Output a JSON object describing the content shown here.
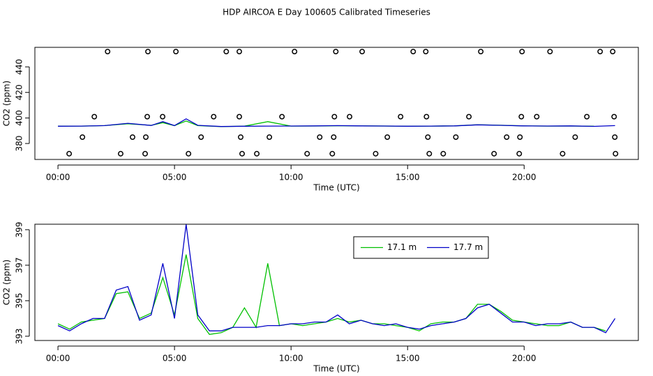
{
  "chart_data": [
    {
      "type": "line",
      "title": "HDP AIRCOA E  Day 100605  Calibrated Timeseries",
      "x_label": "Time (UTC)",
      "y_label": "CO2 (ppm)",
      "xlim": [
        -0.99,
        24.9
      ],
      "ylim": [
        367.5,
        455.3
      ],
      "xticks": [
        {
          "value": 0,
          "label": "00:00"
        },
        {
          "value": 5,
          "label": "05:00"
        },
        {
          "value": 10,
          "label": "10:00"
        },
        {
          "value": 15,
          "label": "15:00"
        },
        {
          "value": 20,
          "label": "20:00"
        }
      ],
      "yticks": [
        380,
        400,
        420,
        440
      ],
      "x": [
        0,
        1,
        2,
        3,
        4,
        4.5,
        5,
        5.5,
        6,
        7,
        8,
        9,
        10,
        11,
        12,
        13,
        14,
        15,
        16,
        17,
        18,
        19,
        20,
        21,
        22,
        23,
        23.9
      ],
      "series": [
        {
          "color": "#00c000",
          "values": [
            393.6,
            393.6,
            394.0,
            395.5,
            394.2,
            396.3,
            394.0,
            397.6,
            394.0,
            393.2,
            393.6,
            397.1,
            393.6,
            393.7,
            393.9,
            393.8,
            393.7,
            393.5,
            393.6,
            393.8,
            394.7,
            394.3,
            393.8,
            393.6,
            393.7,
            393.5,
            null
          ]
        },
        {
          "color": "#0000c8",
          "values": [
            393.5,
            393.6,
            394.0,
            395.8,
            394.1,
            397.1,
            394.0,
            399.3,
            394.2,
            393.3,
            393.5,
            393.6,
            393.7,
            393.8,
            394.0,
            393.8,
            393.7,
            393.5,
            393.6,
            393.8,
            394.6,
            394.2,
            393.8,
            393.7,
            393.8,
            393.4,
            394.0
          ]
        }
      ],
      "points": {
        "color": "#000000",
        "x": [
          2.13,
          3.86,
          5.06,
          7.22,
          7.78,
          10.15,
          11.92,
          13.05,
          15.24,
          15.78,
          18.14,
          19.91,
          21.11,
          23.26,
          23.8,
          1.56,
          3.83,
          4.49,
          6.68,
          7.78,
          9.61,
          11.86,
          12.51,
          14.7,
          15.81,
          17.63,
          19.88,
          20.54,
          22.69,
          23.86,
          1.05,
          3.2,
          3.77,
          6.14,
          7.84,
          9.07,
          11.23,
          11.83,
          14.13,
          15.87,
          17.07,
          19.25,
          19.82,
          22.19,
          23.89,
          0.48,
          2.69,
          3.74,
          5.6,
          7.9,
          8.53,
          10.69,
          11.77,
          13.63,
          15.93,
          16.53,
          18.71,
          19.79,
          21.65,
          23.92
        ],
        "y": [
          452,
          452,
          452,
          452,
          452,
          452,
          452,
          452,
          452,
          452,
          452,
          452,
          452,
          452,
          452,
          401,
          401,
          401,
          401,
          401,
          401,
          401,
          401,
          401,
          401,
          401,
          401,
          401,
          401,
          401,
          385,
          385,
          385,
          385,
          385,
          385,
          385,
          385,
          385,
          385,
          385,
          385,
          385,
          385,
          385,
          372,
          372,
          372,
          372,
          372,
          372,
          372,
          372,
          372,
          372,
          372,
          372,
          372,
          372,
          372
        ]
      }
    },
    {
      "type": "line",
      "x_label": "Time (UTC)",
      "y_label": "CO2 (ppm)",
      "xlim": [
        -0.99,
        24.9
      ],
      "ylim": [
        392.76,
        399.31
      ],
      "xticks": [
        {
          "value": 0,
          "label": "00:00"
        },
        {
          "value": 5,
          "label": "05:00"
        },
        {
          "value": 10,
          "label": "10:00"
        },
        {
          "value": 15,
          "label": "15:00"
        },
        {
          "value": 20,
          "label": "20:00"
        }
      ],
      "yticks": [
        393,
        395,
        397,
        399
      ],
      "legend": "top-right",
      "x": [
        0,
        0.5,
        1,
        1.5,
        2,
        2.5,
        3,
        3.5,
        4,
        4.5,
        5,
        5.5,
        6,
        6.5,
        7,
        7.5,
        8,
        8.5,
        9,
        9.5,
        10,
        10.5,
        11,
        11.5,
        12,
        12.5,
        13,
        13.5,
        14,
        14.5,
        15,
        15.5,
        16,
        16.5,
        17,
        17.5,
        18,
        18.5,
        19,
        19.5,
        20,
        20.5,
        21,
        21.5,
        22,
        22.5,
        23,
        23.5,
        23.9
      ],
      "series": [
        {
          "name": "17.1 m",
          "color": "#00c000",
          "values": [
            393.7,
            393.4,
            393.8,
            393.9,
            394.0,
            395.4,
            395.5,
            394.0,
            394.3,
            396.3,
            394.2,
            397.6,
            394.0,
            393.1,
            393.2,
            393.5,
            394.6,
            393.5,
            397.1,
            393.6,
            393.7,
            393.6,
            393.7,
            393.8,
            394.0,
            393.8,
            393.9,
            393.7,
            393.7,
            393.6,
            393.5,
            393.3,
            393.7,
            393.8,
            393.8,
            394.0,
            394.8,
            394.8,
            394.4,
            393.9,
            393.8,
            393.7,
            393.6,
            393.6,
            393.8,
            393.5,
            393.5,
            393.3,
            null
          ]
        },
        {
          "name": "17.7 m",
          "color": "#0000c8",
          "values": [
            393.6,
            393.3,
            393.7,
            394.0,
            394.0,
            395.6,
            395.8,
            393.9,
            394.2,
            397.1,
            394.0,
            399.3,
            394.2,
            393.3,
            393.3,
            393.5,
            393.5,
            393.5,
            393.6,
            393.6,
            393.7,
            393.7,
            393.8,
            393.8,
            394.2,
            393.7,
            393.9,
            393.7,
            393.6,
            393.7,
            393.5,
            393.4,
            393.6,
            393.7,
            393.8,
            394.0,
            394.6,
            394.8,
            394.3,
            393.8,
            393.8,
            393.6,
            393.7,
            393.7,
            393.8,
            393.5,
            393.5,
            393.2,
            394.0
          ]
        }
      ]
    }
  ]
}
